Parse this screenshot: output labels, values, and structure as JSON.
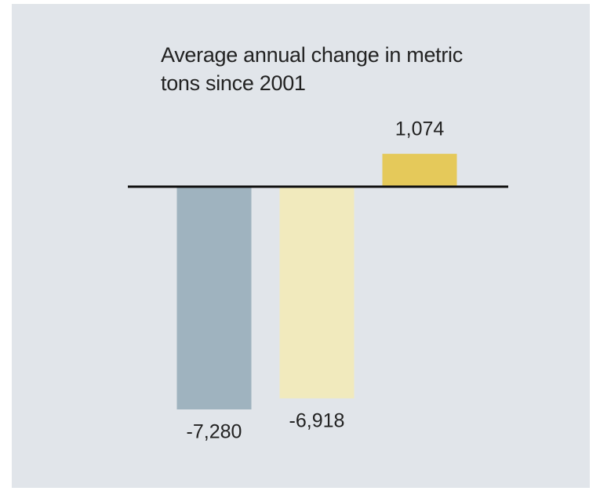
{
  "chart_data": {
    "type": "bar",
    "title": "Average annual change in metric tons since 2001",
    "categories": [
      null,
      null,
      null
    ],
    "values": [
      -7280,
      -6918,
      1074
    ],
    "value_labels": [
      "-7,280",
      "-6,918",
      "1,074"
    ],
    "colors": [
      "#9fb3bf",
      "#f1eabd",
      "#e5c95a"
    ]
  }
}
